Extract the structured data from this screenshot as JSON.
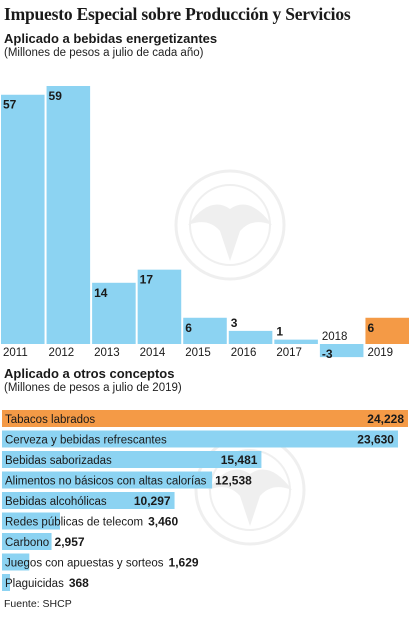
{
  "header": {
    "title": "Impuesto Especial sobre Producción y Servicios"
  },
  "colors": {
    "bar": "#8cd3f2",
    "highlight": "#f49a46",
    "text": "#1a1a1a",
    "watermark": "#7a7a7a"
  },
  "chart_data": [
    {
      "type": "bar",
      "title": "Aplicado a bebidas energetizantes",
      "subtitle": "(Millones de pesos a julio de cada año)",
      "categories": [
        "2011",
        "2012",
        "2013",
        "2014",
        "2015",
        "2016",
        "2017",
        "2018",
        "2019"
      ],
      "values": [
        57,
        59,
        14,
        17,
        6,
        3,
        1,
        -3,
        6
      ],
      "highlight_category": "2019",
      "ylim": [
        -3,
        59
      ],
      "grid": false
    },
    {
      "type": "bar",
      "orientation": "horizontal",
      "title": "Aplicado a otros conceptos",
      "subtitle": "(Millones de pesos a julio de 2019)",
      "categories": [
        "Tabacos labrados",
        "Cerveza y bebidas refrescantes",
        "Bebidas saborizadas",
        "Alimentos no básicos con altas calorías",
        "Bebidas alcohólicas",
        "Redes públicas de telecom",
        "Carbono",
        "Juegos con apuestas  y sorteos",
        "Plaguicidas"
      ],
      "values": [
        24228,
        23630,
        15481,
        12538,
        10297,
        3460,
        2957,
        1629,
        368
      ],
      "value_labels": [
        "24,228",
        "23,630",
        "15,481",
        "12,538",
        "10,297",
        "3,460",
        "2,957",
        "1,629",
        "368"
      ],
      "highlight_category": "Tabacos labrados",
      "xlim": [
        0,
        24228
      ],
      "grid": false
    }
  ],
  "footer": {
    "source": "Fuente: SHCP"
  }
}
